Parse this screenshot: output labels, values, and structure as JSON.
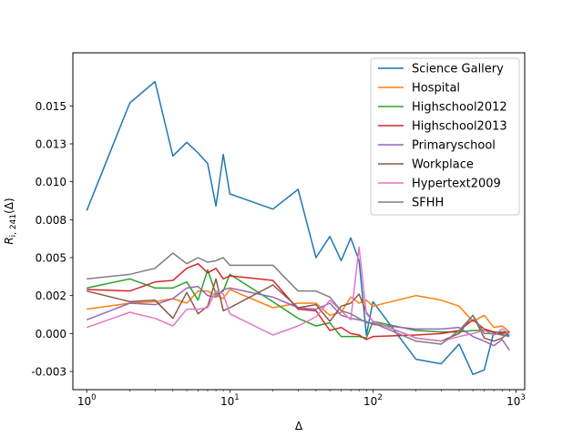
{
  "chart_data": {
    "type": "line",
    "title": "",
    "xlabel": "Δ",
    "ylabel": "R_{i, 241}(Δ)",
    "x_scale": "log",
    "xlim": [
      0.8,
      1150
    ],
    "ylim": [
      -0.0037,
      0.0185
    ],
    "x_ticks": [
      {
        "value": 1,
        "base": "10",
        "exp": "0"
      },
      {
        "value": 10,
        "base": "10",
        "exp": "1"
      },
      {
        "value": 100,
        "base": "10",
        "exp": "2"
      },
      {
        "value": 1000,
        "base": "10",
        "exp": "3"
      }
    ],
    "y_ticks": [
      {
        "value": -0.0025,
        "label": "-0.003"
      },
      {
        "value": 0.0,
        "label": "0.000"
      },
      {
        "value": 0.0025,
        "label": "0.002"
      },
      {
        "value": 0.005,
        "label": "0.005"
      },
      {
        "value": 0.0075,
        "label": "0.008"
      },
      {
        "value": 0.01,
        "label": "0.010"
      },
      {
        "value": 0.0125,
        "label": "0.013"
      },
      {
        "value": 0.015,
        "label": "0.015"
      }
    ],
    "grid": false,
    "legend_position": "top-right",
    "series": [
      {
        "name": "Science Gallery",
        "color": "#1f77b4",
        "x": [
          1,
          2,
          3,
          4,
          5,
          6,
          7,
          8,
          9,
          10,
          20,
          30,
          40,
          50,
          60,
          70,
          80,
          90,
          100,
          200,
          300,
          400,
          500,
          600,
          700,
          800,
          900
        ],
        "y": [
          0.0081,
          0.0152,
          0.0166,
          0.0117,
          0.0126,
          0.0119,
          0.0112,
          0.0084,
          0.0118,
          0.0092,
          0.0082,
          0.0095,
          0.005,
          0.0064,
          0.0048,
          0.0063,
          0.0048,
          -0.0001,
          0.0021,
          -0.0017,
          -0.002,
          -0.0007,
          -0.0027,
          -0.0024,
          0.0001,
          -0.0001,
          -0.0001
        ]
      },
      {
        "name": "Hospital",
        "color": "#ff7f0e",
        "x": [
          1,
          2,
          3,
          4,
          5,
          6,
          7,
          8,
          9,
          10,
          20,
          30,
          40,
          50,
          60,
          70,
          80,
          90,
          100,
          200,
          300,
          400,
          500,
          600,
          700,
          800,
          900
        ],
        "y": [
          0.0016,
          0.002,
          0.0021,
          0.0023,
          0.002,
          0.0028,
          0.0028,
          0.0025,
          0.0023,
          0.0029,
          0.0017,
          0.002,
          0.002,
          0.0012,
          0.0014,
          0.0024,
          0.002,
          0.0022,
          0.0018,
          0.0025,
          0.0022,
          0.0018,
          0.0008,
          0.0012,
          0.0004,
          0.0005,
          0.0001
        ]
      },
      {
        "name": "Highschool2012",
        "color": "#2ca02c",
        "x": [
          1,
          2,
          3,
          4,
          5,
          6,
          7,
          8,
          9,
          10,
          20,
          30,
          40,
          50,
          60,
          70,
          80,
          90,
          100,
          200,
          300,
          400,
          500,
          600,
          700,
          800,
          900
        ],
        "y": [
          0.003,
          0.0036,
          0.003,
          0.003,
          0.0034,
          0.0022,
          0.0042,
          0.0026,
          0.0028,
          0.0039,
          0.0021,
          0.001,
          0.0005,
          0.0007,
          -0.0002,
          -0.0002,
          -0.0002,
          -0.0003,
          0.0008,
          0.0002,
          0.0001,
          0.0001,
          0.0002,
          0.0002,
          0.0001,
          0.0001,
          0.0001
        ]
      },
      {
        "name": "Highschool2013",
        "color": "#d62728",
        "x": [
          1,
          2,
          3,
          4,
          5,
          6,
          7,
          8,
          9,
          10,
          20,
          30,
          40,
          50,
          60,
          70,
          80,
          90,
          100,
          200,
          300,
          400,
          500,
          600,
          700,
          800,
          900
        ],
        "y": [
          0.0029,
          0.0028,
          0.0034,
          0.0035,
          0.0043,
          0.0046,
          0.004,
          0.0043,
          0.0036,
          0.0038,
          0.0035,
          0.0016,
          0.0015,
          0.0002,
          0.0004,
          0.0,
          -0.0001,
          -0.0004,
          -0.0002,
          -0.0001,
          0.0,
          0.0002,
          0.0009,
          0.0003,
          0.0001,
          0.0,
          0.0001
        ]
      },
      {
        "name": "Primaryschool",
        "color": "#9467bd",
        "x": [
          1,
          2,
          3,
          4,
          5,
          6,
          7,
          8,
          9,
          10,
          20,
          30,
          40,
          50,
          60,
          70,
          80,
          90,
          100,
          200,
          300,
          400,
          500,
          600,
          700,
          800,
          900
        ],
        "y": [
          0.0009,
          0.002,
          0.0019,
          0.0023,
          0.003,
          0.0031,
          0.0025,
          0.0024,
          0.0029,
          0.003,
          0.0024,
          0.0017,
          0.0016,
          0.002,
          0.0012,
          0.001,
          0.0009,
          0.0008,
          0.0006,
          0.0003,
          0.0003,
          0.0004,
          -0.0002,
          -0.0005,
          -0.0008,
          -0.0004,
          -0.0011
        ]
      },
      {
        "name": "Workplace",
        "color": "#8c564b",
        "x": [
          1,
          2,
          3,
          4,
          5,
          6,
          7,
          8,
          9,
          10,
          20,
          30,
          40,
          50,
          60,
          70,
          80,
          90,
          100,
          200,
          300,
          400,
          500,
          600,
          700,
          800,
          900
        ],
        "y": [
          0.0028,
          0.0021,
          0.0022,
          0.001,
          0.0027,
          0.0013,
          0.0018,
          0.0036,
          0.0015,
          0.0017,
          0.0032,
          0.0017,
          0.0019,
          0.0008,
          0.0018,
          0.002,
          0.0026,
          0.0014,
          0.0008,
          -0.0003,
          -0.0005,
          0.0,
          0.0012,
          -0.0003,
          -0.0005,
          -0.0003,
          0.0001
        ]
      },
      {
        "name": "Hypertext2009",
        "color": "#e377c2",
        "x": [
          1,
          2,
          3,
          4,
          5,
          6,
          7,
          8,
          9,
          10,
          20,
          30,
          40,
          50,
          60,
          70,
          80,
          90,
          100,
          200,
          300,
          400,
          500,
          600,
          700,
          800,
          900
        ],
        "y": [
          0.0004,
          0.0014,
          0.001,
          0.0005,
          0.0016,
          0.0016,
          0.0017,
          0.0028,
          0.0026,
          0.0013,
          -0.0001,
          0.0005,
          0.0011,
          0.0022,
          0.0015,
          0.0009,
          0.0057,
          0.0013,
          0.0008,
          -0.0003,
          -0.0005,
          -0.0002,
          0.0,
          0.0002,
          -0.0001,
          0.0003,
          0.0
        ]
      },
      {
        "name": "SFHH",
        "color": "#7f7f7f",
        "x": [
          1,
          2,
          3,
          4,
          5,
          6,
          7,
          8,
          9,
          10,
          20,
          30,
          40,
          50,
          60,
          70,
          80,
          90,
          100,
          200,
          300,
          400,
          500,
          600,
          700,
          800,
          900
        ],
        "y": [
          0.0036,
          0.0039,
          0.0043,
          0.0053,
          0.0046,
          0.005,
          0.0047,
          0.0048,
          0.005,
          0.0045,
          0.0045,
          0.0028,
          0.0028,
          0.0024,
          0.0015,
          0.0013,
          0.001,
          0.0007,
          0.0007,
          -0.0005,
          -0.0007,
          0.0002,
          0.0012,
          0.0,
          0.0,
          -0.0001,
          -0.0002
        ]
      }
    ]
  }
}
